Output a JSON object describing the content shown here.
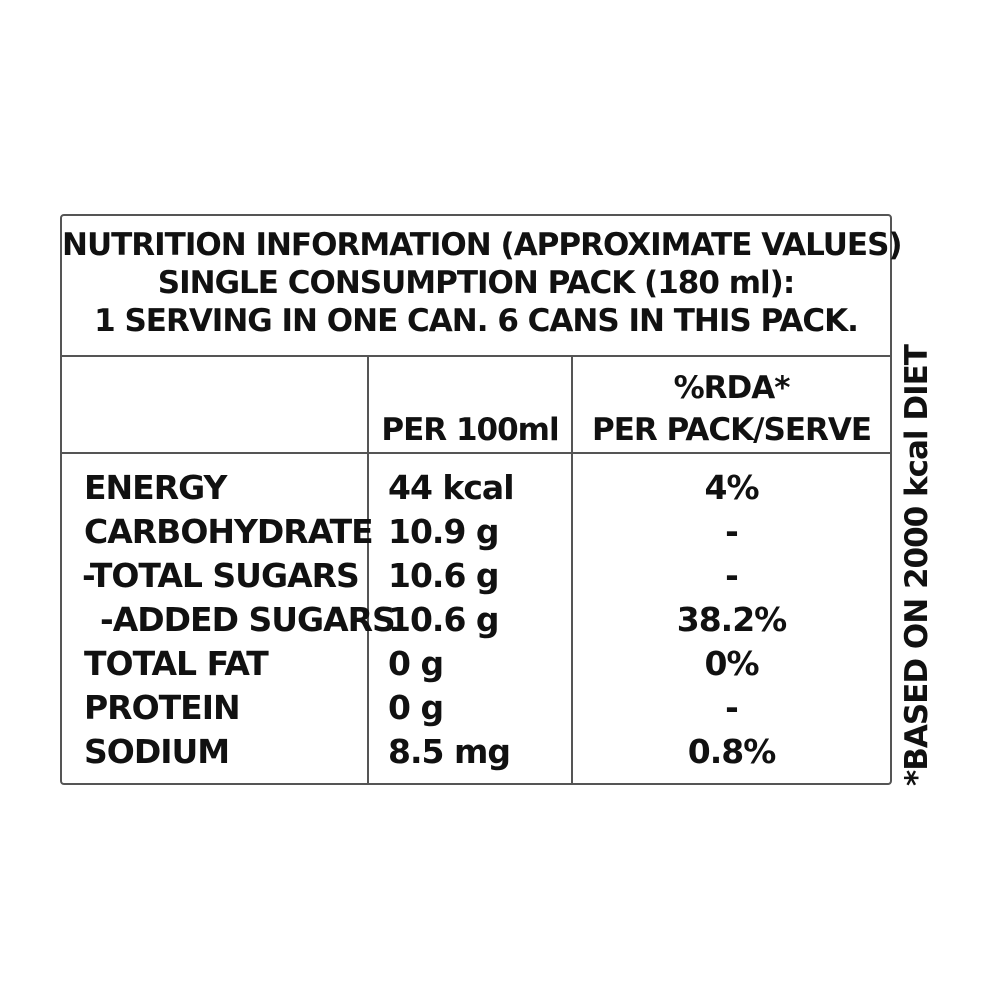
{
  "header": {
    "line1": "NUTRITION INFORMATION (APPROXIMATE VALUES)",
    "line2": "SINGLE CONSUMPTION PACK (180 ml):",
    "line3": "1 SERVING IN ONE CAN. 6 CANS IN THIS PACK."
  },
  "columns": {
    "per_100ml": "PER 100ml",
    "rda_line1": "%RDA*",
    "rda_line2": "PER PACK/SERVE"
  },
  "rows": [
    {
      "nutrient": "ENERGY",
      "per_100ml": "44 kcal",
      "rda": "4%"
    },
    {
      "nutrient": "CARBOHYDRATE",
      "per_100ml": "10.9 g",
      "rda": "-"
    },
    {
      "nutrient": "-TOTAL SUGARS",
      "per_100ml": "10.6 g",
      "rda": "-"
    },
    {
      "nutrient": "-ADDED SUGARS",
      "per_100ml": "10.6 g",
      "rda": "38.2%"
    },
    {
      "nutrient": "TOTAL FAT",
      "per_100ml": "0 g",
      "rda": "0%"
    },
    {
      "nutrient": "PROTEIN",
      "per_100ml": "0 g",
      "rda": "-"
    },
    {
      "nutrient": "SODIUM",
      "per_100ml": "8.5 mg",
      "rda": "0.8%"
    }
  ],
  "footnote": "*BASED ON 2000 kcal DIET"
}
